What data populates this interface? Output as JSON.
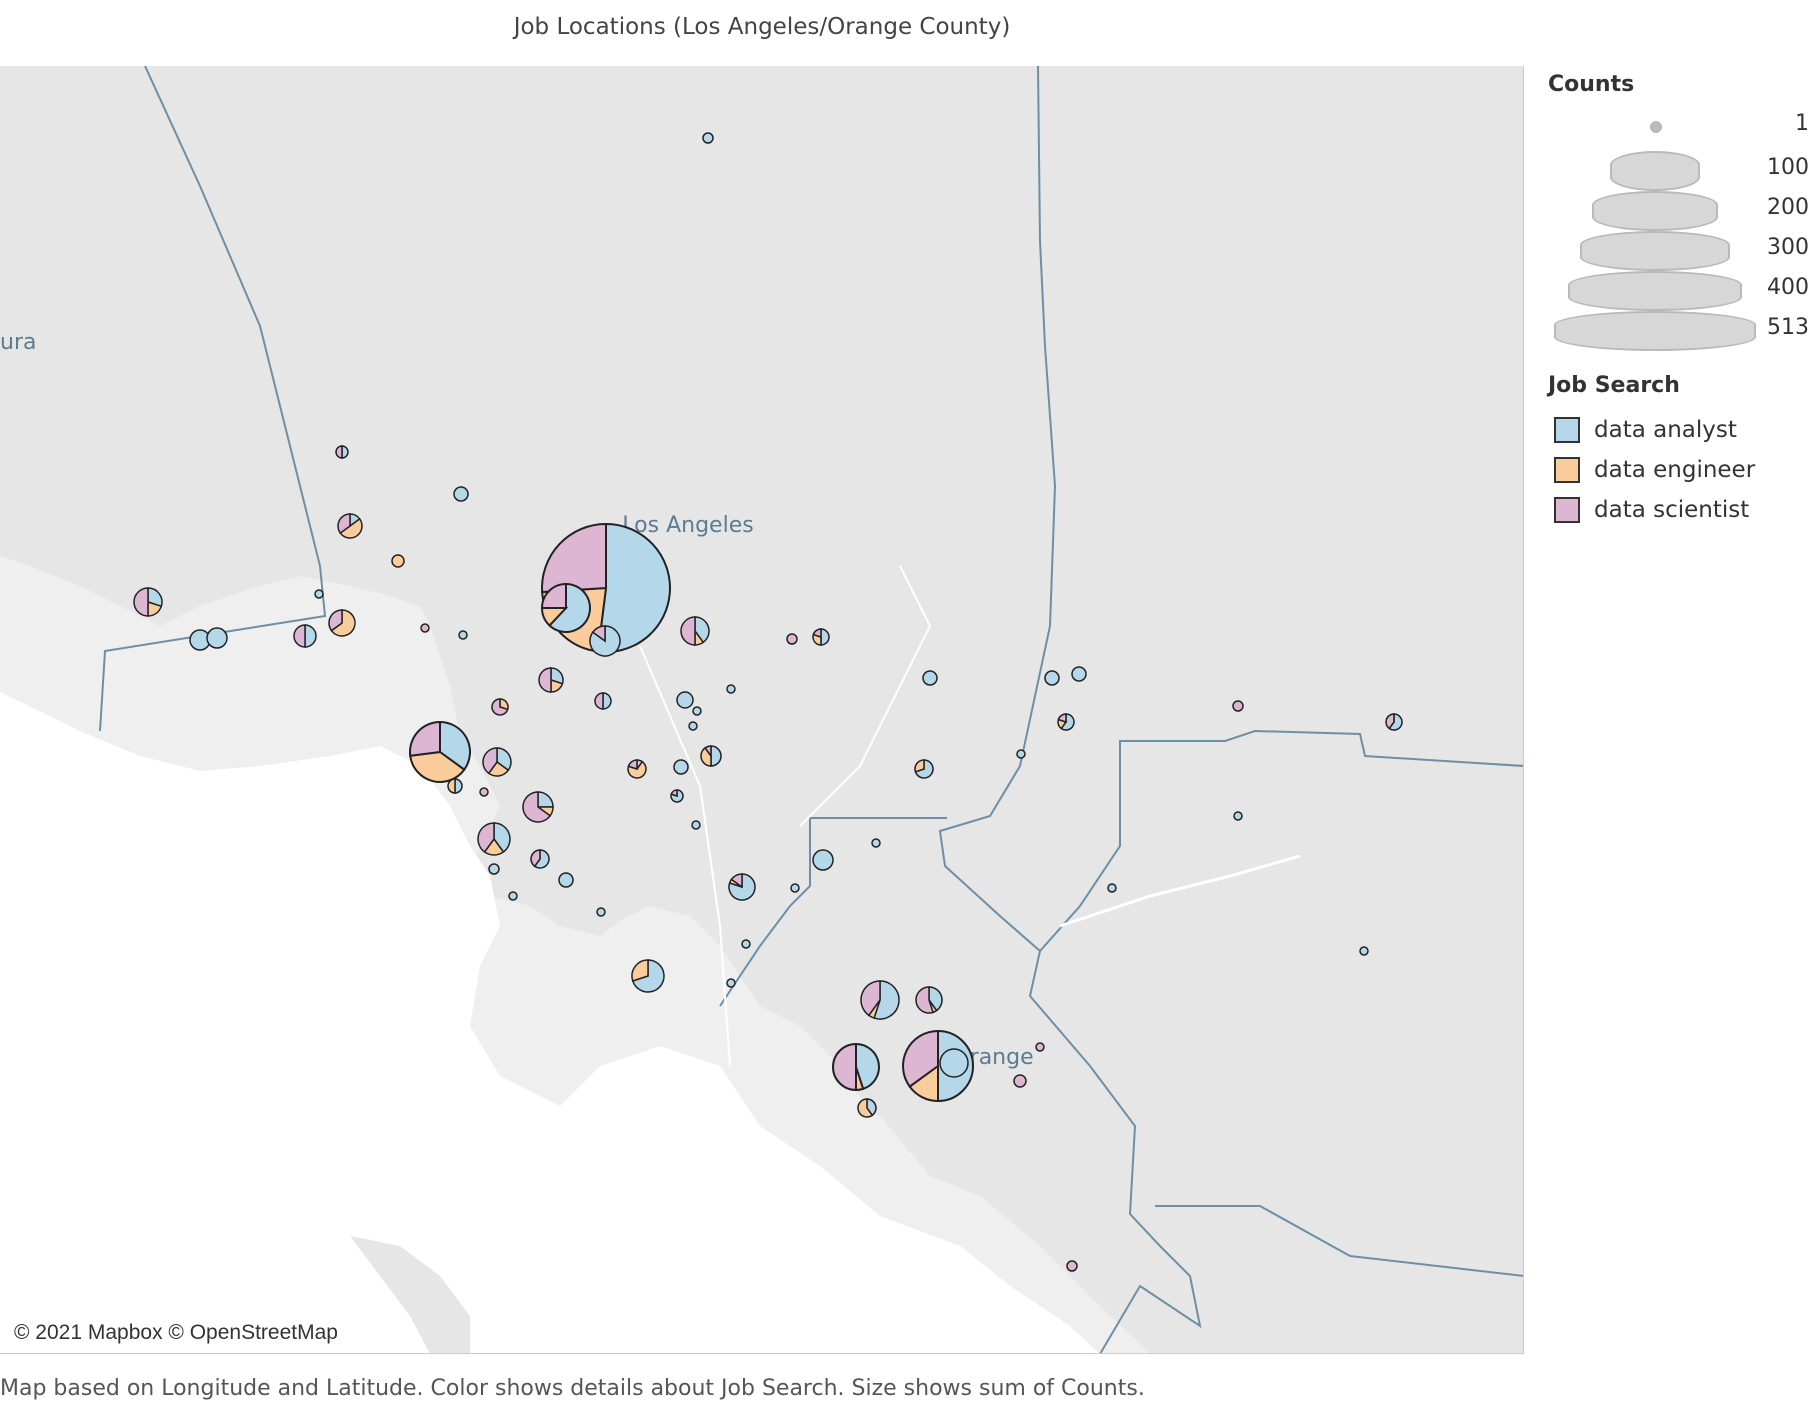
{
  "title": "Job Locations (Los Angeles/Orange County)",
  "attribution": "© 2021 Mapbox © OpenStreetMap",
  "footer": "Map based on Longitude and Latitude.  Color shows details about Job Search.  Size shows sum of Counts.",
  "map_labels": {
    "la": "Los Angeles",
    "orange": "Orange",
    "ventura": "ura"
  },
  "legend": {
    "counts_title": "Counts",
    "size_levels": [
      "1",
      "100",
      "200",
      "300",
      "400",
      "513"
    ],
    "job_title": "Job Search",
    "job_items": [
      {
        "label": "data analyst",
        "color": "#b5d7ea"
      },
      {
        "label": "data engineer",
        "color": "#fbcc9b"
      },
      {
        "label": "data scientist",
        "color": "#dcb6d3"
      }
    ]
  },
  "colors": {
    "land": "#e8e8e8",
    "ocean": "#ffffff",
    "border": "#6d8fa6"
  },
  "chart_data": {
    "type": "pie-map",
    "series_order": [
      "data analyst",
      "data engineer",
      "data scientist"
    ],
    "total_range": [
      1,
      513
    ]
  }
}
